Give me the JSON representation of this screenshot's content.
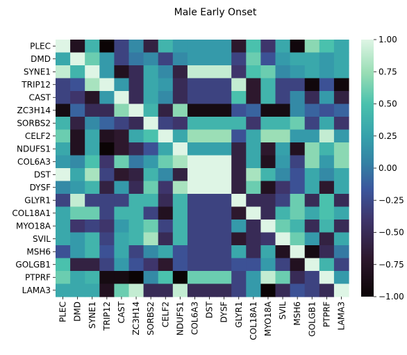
{
  "chart_data": {
    "type": "heatmap",
    "title": "Male Early Onset",
    "xlabel": "",
    "ylabel": "",
    "colormap": "mako",
    "colorbar": {
      "range": [
        -1.0,
        1.0
      ],
      "ticks": [
        1.0,
        0.75,
        0.5,
        0.25,
        0.0,
        -0.25,
        -0.5,
        -0.75,
        -1.0
      ],
      "tick_labels": [
        "1.00",
        "0.75",
        "0.50",
        "0.25",
        "0.00",
        "−0.25",
        "−0.50",
        "−0.75",
        "−1.00"
      ]
    },
    "rows": [
      "PLEC",
      "DMD",
      "SYNE1",
      "TRIP12",
      "CAST",
      "ZC3H14",
      "SORBS2",
      "CELF2",
      "NDUFS1",
      "COL6A3",
      "DST",
      "DYSF",
      "GLYR1",
      "COL18A1",
      "MYO18A",
      "SVIL",
      "MSH6",
      "GOLGB1",
      "PTPRF",
      "LAMA3"
    ],
    "columns": [
      "PLEC",
      "DMD",
      "SYNE1",
      "TRIP12",
      "CAST",
      "ZC3H14",
      "SORBS2",
      "CELF2",
      "NDUFS1",
      "COL6A3",
      "DST",
      "DYSF",
      "GLYR1",
      "COL18A1",
      "MYO18A",
      "SVIL",
      "MSH6",
      "GOLGB1",
      "PTPRF",
      "LAMA3"
    ],
    "values": [
      [
        1.0,
        -0.8,
        0.4,
        -1.0,
        -0.3,
        0.1,
        -0.6,
        0.4,
        0.2,
        0.2,
        0.2,
        0.2,
        -0.7,
        0.5,
        -0.4,
        0.3,
        -0.95,
        0.7,
        0.5,
        0.3
      ],
      [
        0.3,
        1.0,
        0.6,
        0.2,
        -0.3,
        0.0,
        0.1,
        -0.3,
        0.1,
        0.2,
        0.2,
        0.2,
        -0.3,
        0.6,
        -0.2,
        0.2,
        0.3,
        0.3,
        0.2,
        0.3
      ],
      [
        0.9,
        0.4,
        1.0,
        0.2,
        -0.8,
        -0.5,
        0.3,
        0.1,
        -0.6,
        0.9,
        0.9,
        0.9,
        -0.4,
        0.5,
        0.6,
        0.1,
        0.2,
        0.3,
        0.2,
        0.3
      ],
      [
        -0.3,
        -0.2,
        0.8,
        1.0,
        0.2,
        -0.5,
        0.3,
        0.2,
        -0.5,
        -0.3,
        -0.3,
        -0.3,
        0.9,
        -0.7,
        0.4,
        -0.3,
        -0.3,
        -0.95,
        -0.2,
        -0.95
      ],
      [
        -0.3,
        -0.4,
        -0.75,
        0.2,
        1.0,
        -0.5,
        0.3,
        0.1,
        -0.5,
        -0.3,
        -0.3,
        -0.3,
        0.5,
        -0.7,
        0.4,
        -0.3,
        0.1,
        -0.5,
        0.2,
        -0.6
      ],
      [
        -0.9,
        -0.1,
        -0.5,
        -0.5,
        0.7,
        1.0,
        0.4,
        -0.6,
        0.7,
        -0.9,
        -0.9,
        -0.9,
        -0.2,
        -0.1,
        -0.9,
        -0.9,
        0.1,
        -0.1,
        -0.2,
        -0.1
      ],
      [
        0.4,
        -0.6,
        0.1,
        -0.1,
        -0.3,
        -0.5,
        1.0,
        -0.3,
        -0.4,
        0.4,
        0.4,
        0.4,
        0.4,
        -0.4,
        0.4,
        0.4,
        0.6,
        -0.3,
        0.3,
        -0.4
      ],
      [
        0.6,
        -0.8,
        0.3,
        -0.8,
        -0.7,
        0.3,
        0.5,
        1.0,
        0.3,
        0.75,
        0.75,
        0.75,
        -0.2,
        0.3,
        0.75,
        0.75,
        0.2,
        0.2,
        0.9,
        0.2
      ],
      [
        0.3,
        -0.8,
        0.3,
        -1.0,
        -0.7,
        -0.5,
        -0.2,
        0.3,
        1.0,
        0.25,
        0.25,
        0.25,
        -0.6,
        0.3,
        -0.7,
        0.25,
        -0.8,
        0.7,
        0.4,
        0.7
      ],
      [
        0.2,
        0.1,
        0.5,
        -0.4,
        0.6,
        0.0,
        0.2,
        0.6,
        0.8,
        1.0,
        1.0,
        1.0,
        -0.6,
        0.3,
        -0.8,
        0.2,
        -0.3,
        0.7,
        0.2,
        0.7
      ],
      [
        1.0,
        0.3,
        0.8,
        -0.3,
        -0.7,
        -0.6,
        0.4,
        0.1,
        -0.6,
        1.0,
        1.0,
        1.0,
        -0.6,
        0.8,
        0.4,
        0.1,
        -0.2,
        0.3,
        0.1,
        0.3
      ],
      [
        0.1,
        0.2,
        0.4,
        -0.6,
        0.2,
        -0.5,
        0.6,
        -0.4,
        0.8,
        1.0,
        1.0,
        1.0,
        -0.6,
        0.6,
        -0.8,
        -0.4,
        -0.2,
        0.3,
        -0.7,
        0.3
      ],
      [
        -0.3,
        0.9,
        -0.3,
        -0.3,
        -0.3,
        0.4,
        0.4,
        -0.5,
        0.4,
        -0.3,
        -0.3,
        -0.3,
        1.0,
        -0.5,
        -0.5,
        -0.3,
        0.6,
        -0.5,
        0.5,
        -0.5
      ],
      [
        0.3,
        0.6,
        0.6,
        -0.3,
        0.4,
        0.4,
        -0.3,
        -0.8,
        0.4,
        -0.3,
        -0.3,
        -0.3,
        -0.7,
        1.0,
        -0.5,
        0.4,
        0.6,
        0.3,
        0.5,
        0.3
      ],
      [
        0.3,
        -0.4,
        -0.3,
        -0.4,
        0.2,
        0.4,
        0.6,
        -0.3,
        0.4,
        -0.3,
        -0.3,
        -0.3,
        0.2,
        -0.5,
        1.0,
        0.6,
        0.4,
        -0.5,
        0.4,
        -0.5
      ],
      [
        0.3,
        0.2,
        0.4,
        -0.3,
        0.3,
        0.4,
        0.8,
        -0.5,
        0.4,
        -0.3,
        -0.3,
        -0.3,
        -0.7,
        -0.5,
        -0.4,
        1.0,
        0.6,
        0.2,
        -0.6,
        0.3
      ],
      [
        -0.2,
        0.2,
        0.4,
        -0.2,
        0.3,
        -0.3,
        0.1,
        0.3,
        -0.2,
        -0.3,
        -0.3,
        -0.3,
        0.3,
        -0.5,
        0.3,
        -0.8,
        1.0,
        -0.9,
        -0.5,
        0.0
      ],
      [
        0.5,
        -0.6,
        -0.6,
        -0.3,
        0.2,
        -0.2,
        -0.4,
        -0.7,
        -0.2,
        -0.3,
        -0.3,
        -0.3,
        -0.2,
        -0.2,
        0.2,
        -0.3,
        -0.8,
        1.0,
        0.4,
        -0.3
      ],
      [
        0.6,
        0.3,
        0.4,
        -0.9,
        -0.9,
        -1.0,
        0.1,
        0.5,
        -1.0,
        0.6,
        0.6,
        0.6,
        -0.3,
        0.2,
        0.9,
        0.6,
        -0.5,
        -0.3,
        1.0,
        0.2
      ],
      [
        0.3,
        0.3,
        0.3,
        -0.8,
        0.6,
        0.9,
        -0.5,
        -0.5,
        0.9,
        -0.5,
        -0.5,
        -0.5,
        -0.3,
        0.2,
        -1.0,
        -0.5,
        -0.2,
        -0.3,
        -0.5,
        1.0
      ]
    ]
  }
}
